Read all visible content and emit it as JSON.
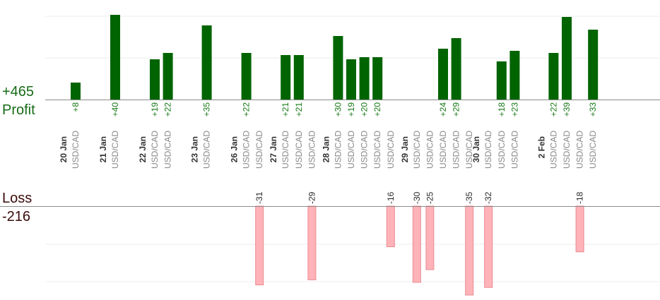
{
  "colors": {
    "profit_bar": "#006400",
    "profit_label": "#177817",
    "loss_bar": "#ffb3b8",
    "loss_bar_border": "#e88a92",
    "loss_label": "#2a2a2a",
    "day_label": "#333333",
    "pair_label": "#888888",
    "gridline": "#eeeeee",
    "axis": "#8a8a8a"
  },
  "summary": {
    "profit_total": "+465",
    "profit_label": "Profit",
    "loss_label": "Loss",
    "loss_total": "-216"
  },
  "chart_data": {
    "type": "bar",
    "title": "",
    "xlabel": "",
    "ylabel": "",
    "profit_ylim": [
      0,
      40
    ],
    "loss_ylim": [
      0,
      32
    ],
    "grid": true,
    "days": [
      {
        "label": "20 Jan",
        "trade_start": 0
      },
      {
        "label": "21 Jan",
        "trade_start": 1
      },
      {
        "label": "22 Jan",
        "trade_start": 2
      },
      {
        "label": "23 Jan",
        "trade_start": 4
      },
      {
        "label": "26 Jan",
        "trade_start": 5
      },
      {
        "label": "27 Jan",
        "trade_start": 7
      },
      {
        "label": "28 Jan",
        "trade_start": 10
      },
      {
        "label": "29 Jan",
        "trade_start": 15
      },
      {
        "label": "30 Jan",
        "trade_start": 20
      },
      {
        "label": "2 Feb",
        "trade_start": 23
      }
    ],
    "trades": [
      {
        "pair": "USD/CAD",
        "value": 8,
        "label": "+8"
      },
      {
        "pair": "USD/CAD",
        "value": 40,
        "label": "+40"
      },
      {
        "pair": "USD/CAD",
        "value": 19,
        "label": "+19"
      },
      {
        "pair": "USD/CAD",
        "value": 22,
        "label": "+22"
      },
      {
        "pair": "USD/CAD",
        "value": 35,
        "label": "+35"
      },
      {
        "pair": "USD/CAD",
        "value": 22,
        "label": "+22"
      },
      {
        "pair": "USD/CAD",
        "value": -31,
        "label": "-31"
      },
      {
        "pair": "USD/CAD",
        "value": 21,
        "label": "+21"
      },
      {
        "pair": "USD/CAD",
        "value": 21,
        "label": "+21"
      },
      {
        "pair": "USD/CAD",
        "value": -29,
        "label": "-29"
      },
      {
        "pair": "USD/CAD",
        "value": 30,
        "label": "+30"
      },
      {
        "pair": "USD/CAD",
        "value": 19,
        "label": "+19"
      },
      {
        "pair": "USD/CAD",
        "value": 20,
        "label": "+20"
      },
      {
        "pair": "USD/CAD",
        "value": 20,
        "label": "+20"
      },
      {
        "pair": "USD/CAD",
        "value": -16,
        "label": "-16"
      },
      {
        "pair": "USD/CAD",
        "value": -30,
        "label": "-30"
      },
      {
        "pair": "USD/CAD",
        "value": -25,
        "label": "-25"
      },
      {
        "pair": "USD/CAD",
        "value": 24,
        "label": "+24"
      },
      {
        "pair": "USD/CAD",
        "value": 29,
        "label": "+29"
      },
      {
        "pair": "USD/CAD",
        "value": -35,
        "label": "-35"
      },
      {
        "pair": "USD/CAD",
        "value": -32,
        "label": "-32"
      },
      {
        "pair": "USD/CAD",
        "value": 18,
        "label": "+18"
      },
      {
        "pair": "USD/CAD",
        "value": 23,
        "label": "+23"
      },
      {
        "pair": "USD/CAD",
        "value": 22,
        "label": "+22"
      },
      {
        "pair": "USD/CAD",
        "value": 39,
        "label": "+39"
      },
      {
        "pair": "USD/CAD",
        "value": -18,
        "label": "-18"
      },
      {
        "pair": "USD/CAD",
        "value": 33,
        "label": "+33"
      }
    ]
  }
}
